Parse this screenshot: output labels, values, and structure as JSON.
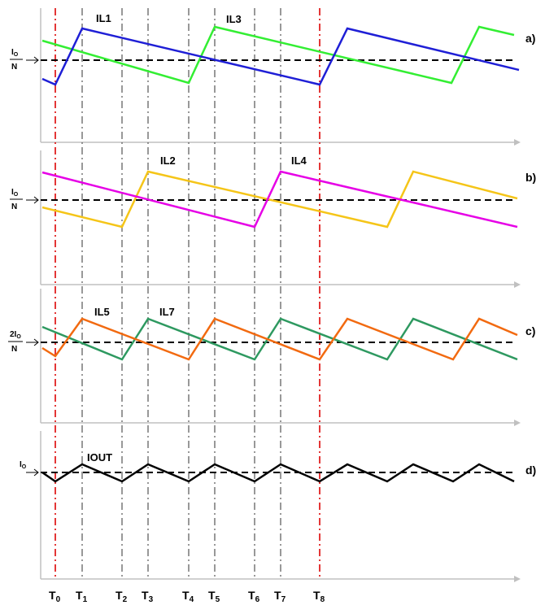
{
  "timing_labels": [
    {
      "main": "T",
      "sub": "0",
      "x": 0
    },
    {
      "main": "T",
      "sub": "1",
      "x": 1
    },
    {
      "main": "T",
      "sub": "2",
      "x": 2
    },
    {
      "main": "T",
      "sub": "3",
      "x": 3
    },
    {
      "main": "T",
      "sub": "4",
      "x": 4
    },
    {
      "main": "T",
      "sub": "5",
      "x": 5
    },
    {
      "main": "T",
      "sub": "6",
      "x": 6
    },
    {
      "main": "T",
      "sub": "7",
      "x": 7
    },
    {
      "main": "T",
      "sub": "8",
      "x": 8
    }
  ],
  "panels": [
    {
      "id": "a",
      "label": "a)",
      "ref_label": {
        "top": "I",
        "top_sub": "O",
        "bottom": "N"
      },
      "traces": [
        {
          "name": "IL1",
          "color": "#1f1fd6"
        },
        {
          "name": "IL3",
          "color": "#33ee33"
        }
      ]
    },
    {
      "id": "b",
      "label": "b)",
      "ref_label": {
        "top": "I",
        "top_sub": "O",
        "bottom": "N"
      },
      "traces": [
        {
          "name": "IL2",
          "color": "#f5c518"
        },
        {
          "name": "IL4",
          "color": "#e600e6"
        }
      ]
    },
    {
      "id": "c",
      "label": "c)",
      "ref_label": {
        "top": "2I",
        "top_sub": "O",
        "bottom": "N"
      },
      "traces": [
        {
          "name": "IL5",
          "color": "#f26a10"
        },
        {
          "name": "IL7",
          "color": "#2e9960"
        }
      ]
    },
    {
      "id": "d",
      "label": "d)",
      "ref_label": {
        "top": "I",
        "top_sub": "O",
        "bottom": ""
      },
      "traces": [
        {
          "name": "IOUT",
          "color": "#000000"
        }
      ]
    }
  ],
  "colors": {
    "axis": "#c0c0c0",
    "red_guide": "#e02020",
    "gray_guide": "#555555",
    "reference": "#000000"
  }
}
